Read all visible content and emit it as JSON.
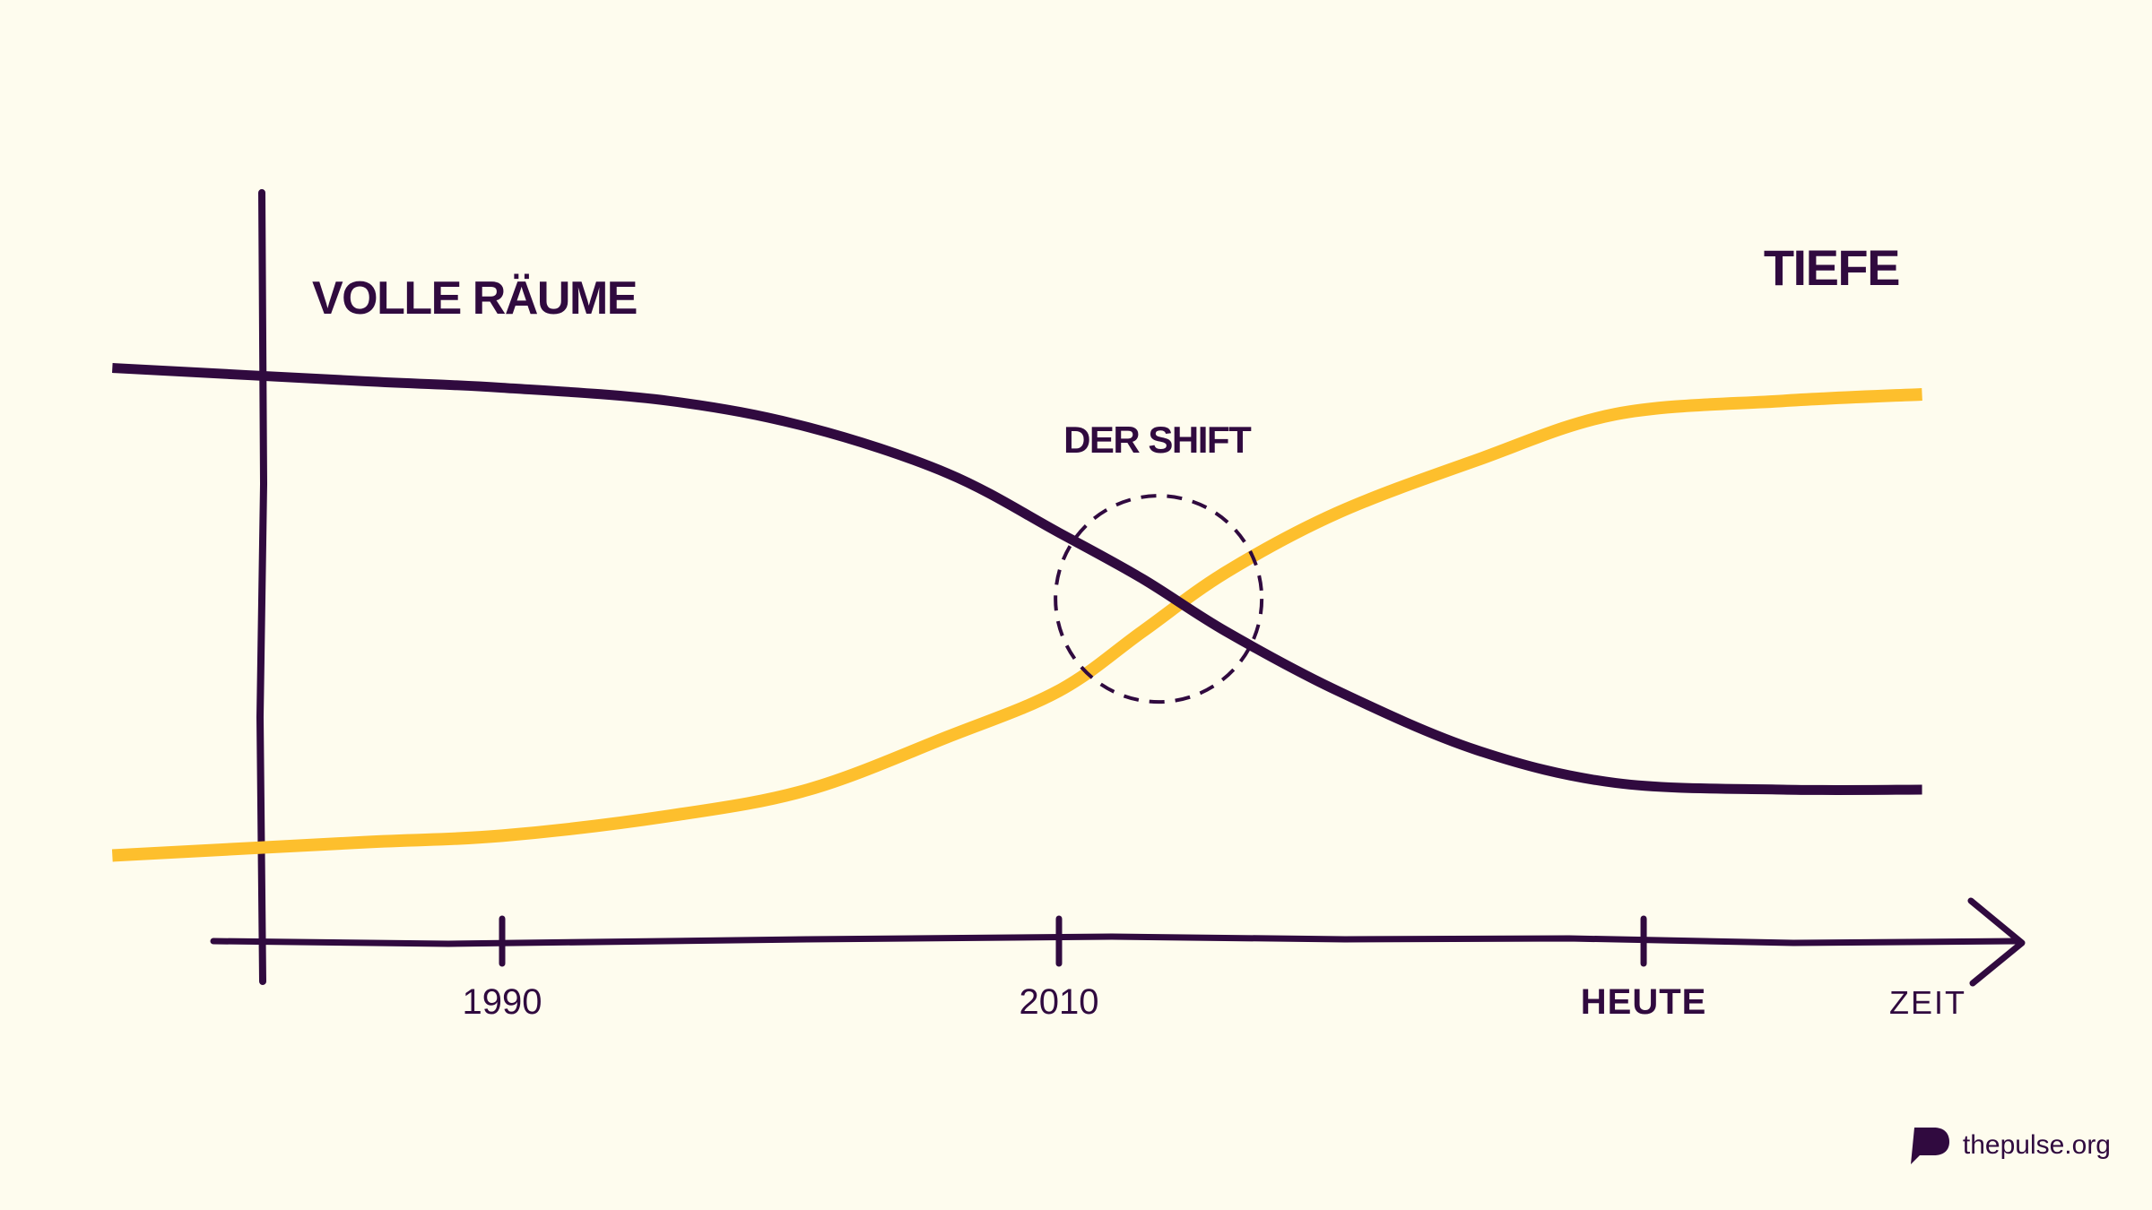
{
  "chart_data": {
    "type": "line",
    "xlabel": "ZEIT",
    "ylabel": "",
    "x_ticks": [
      {
        "value": 1990,
        "label": "1990",
        "bold": false
      },
      {
        "value": 2010,
        "label": "2010",
        "bold": false
      },
      {
        "value": 2031,
        "label": "HEUTE",
        "bold": true
      }
    ],
    "series": [
      {
        "name": "VOLLE RÄUME",
        "color": "#300a3f",
        "points": [
          [
            1976,
            0.87
          ],
          [
            1985,
            0.85
          ],
          [
            1990,
            0.84
          ],
          [
            1996,
            0.82
          ],
          [
            2001,
            0.78
          ],
          [
            2006,
            0.71
          ],
          [
            2010,
            0.62
          ],
          [
            2013,
            0.55
          ],
          [
            2016,
            0.47
          ],
          [
            2020,
            0.38
          ],
          [
            2025,
            0.29
          ],
          [
            2030,
            0.24
          ],
          [
            2036,
            0.23
          ],
          [
            2041,
            0.23
          ]
        ]
      },
      {
        "name": "TIEFE",
        "color": "#fdbf2d",
        "points": [
          [
            1976,
            0.13
          ],
          [
            1985,
            0.15
          ],
          [
            1990,
            0.16
          ],
          [
            1996,
            0.19
          ],
          [
            2001,
            0.23
          ],
          [
            2006,
            0.31
          ],
          [
            2010,
            0.38
          ],
          [
            2013,
            0.47
          ],
          [
            2016,
            0.56
          ],
          [
            2020,
            0.65
          ],
          [
            2025,
            0.73
          ],
          [
            2030,
            0.8
          ],
          [
            2036,
            0.82
          ],
          [
            2041,
            0.83
          ]
        ]
      }
    ],
    "annotation": {
      "label": "DER SHIFT",
      "x": 2013,
      "y": 0.51
    },
    "grid": false,
    "legend": "none"
  },
  "brand": {
    "text": "thepulse.org",
    "icon": "pulse-logo-icon"
  },
  "colors": {
    "background": "#fefcee",
    "primary": "#300a3f",
    "accent": "#fdbf2d"
  }
}
